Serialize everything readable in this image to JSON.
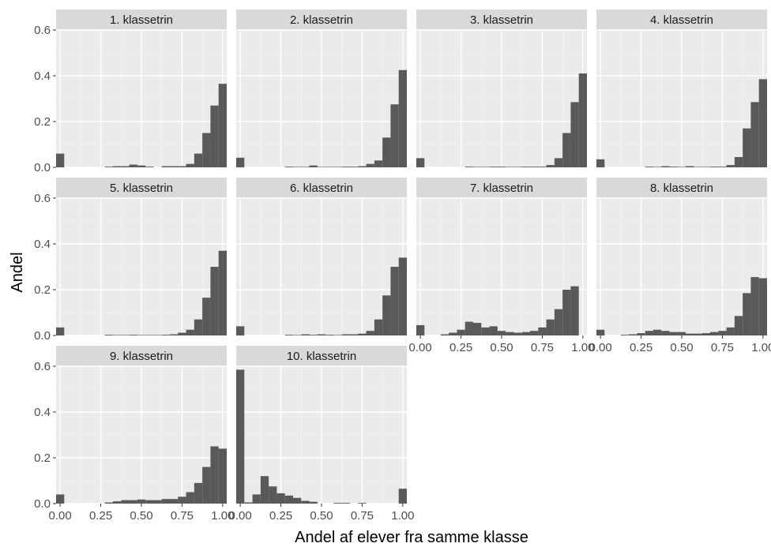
{
  "chart_data": {
    "type": "histogram-facets",
    "xlabel": "Andel af elever fra samme klasse",
    "ylabel": "Andel",
    "xlim": [
      -0.025,
      1.025
    ],
    "ylim": [
      0,
      0.6
    ],
    "x_ticks": [
      "0.00",
      "0.25",
      "0.50",
      "0.75",
      "1.00"
    ],
    "y_ticks": [
      "0.0",
      "0.2",
      "0.4",
      "0.6"
    ],
    "bin_centers": [
      0.0,
      0.05,
      0.1,
      0.15,
      0.2,
      0.25,
      0.3,
      0.35,
      0.4,
      0.45,
      0.5,
      0.55,
      0.6,
      0.65,
      0.7,
      0.75,
      0.8,
      0.85,
      0.9,
      0.95,
      1.0
    ],
    "bar_color": "#595959",
    "panel_bg": "#ebebeb",
    "strip_bg": "#d9d9d9",
    "facets": [
      {
        "label": "1. klassetrin",
        "values": [
          0.06,
          0,
          0,
          0,
          0,
          0,
          0.003,
          0.005,
          0.005,
          0.012,
          0.008,
          0.003,
          0,
          0.005,
          0.005,
          0.005,
          0.015,
          0.06,
          0.15,
          0.27,
          0.365
        ]
      },
      {
        "label": "2. klassetrin",
        "values": [
          0.042,
          0,
          0,
          0,
          0,
          0,
          0.003,
          0.002,
          0.002,
          0.008,
          0.002,
          0.002,
          0.002,
          0.003,
          0.003,
          0.005,
          0.015,
          0.03,
          0.13,
          0.275,
          0.425
        ]
      },
      {
        "label": "3. klassetrin",
        "values": [
          0.04,
          0,
          0,
          0,
          0,
          0,
          0.003,
          0.002,
          0.002,
          0.003,
          0.003,
          0.002,
          0.002,
          0.003,
          0.003,
          0.003,
          0.01,
          0.04,
          0.15,
          0.285,
          0.41
        ]
      },
      {
        "label": "4. klassetrin",
        "values": [
          0.035,
          0,
          0,
          0,
          0,
          0,
          0.003,
          0.002,
          0.005,
          0.003,
          0.002,
          0.005,
          0.002,
          0.002,
          0.003,
          0.003,
          0.01,
          0.045,
          0.17,
          0.285,
          0.385
        ]
      },
      {
        "label": "5. klassetrin",
        "values": [
          0.035,
          0,
          0,
          0,
          0,
          0,
          0.003,
          0.002,
          0.002,
          0.003,
          0.002,
          0.002,
          0.002,
          0.003,
          0.005,
          0.012,
          0.025,
          0.07,
          0.165,
          0.3,
          0.37
        ]
      },
      {
        "label": "6. klassetrin",
        "values": [
          0.04,
          0,
          0,
          0,
          0,
          0,
          0.003,
          0.002,
          0.005,
          0.003,
          0.005,
          0.003,
          0.002,
          0.005,
          0.005,
          0.008,
          0.02,
          0.07,
          0.175,
          0.3,
          0.34
        ]
      },
      {
        "label": "7. klassetrin",
        "values": [
          0.045,
          0,
          0,
          0.005,
          0.012,
          0.025,
          0.06,
          0.055,
          0.035,
          0.04,
          0.02,
          0.015,
          0.012,
          0.015,
          0.02,
          0.035,
          0.07,
          0.115,
          0.2,
          0.215,
          0
        ]
      },
      {
        "label": "8. klassetrin",
        "values": [
          0.025,
          0,
          0,
          0.003,
          0.005,
          0.01,
          0.02,
          0.025,
          0.02,
          0.015,
          0.015,
          0.008,
          0.008,
          0.01,
          0.015,
          0.02,
          0.035,
          0.085,
          0.185,
          0.255,
          0.25
        ]
      },
      {
        "label": "9. klassetrin",
        "values": [
          0.04,
          0,
          0,
          0,
          0,
          0,
          0.005,
          0.01,
          0.015,
          0.015,
          0.018,
          0.015,
          0.015,
          0.02,
          0.02,
          0.03,
          0.05,
          0.09,
          0.16,
          0.25,
          0.24
        ]
      },
      {
        "label": "10. klassetrin",
        "values": [
          0.585,
          0.005,
          0.04,
          0.12,
          0.075,
          0.045,
          0.035,
          0.025,
          0.012,
          0.008,
          0,
          0,
          0.003,
          0.003,
          0,
          0.003,
          0,
          0,
          0,
          0,
          0.065
        ]
      }
    ]
  }
}
